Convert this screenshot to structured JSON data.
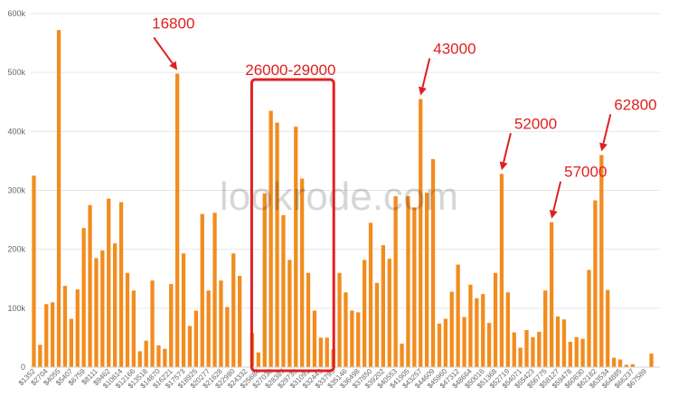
{
  "chart_data": {
    "type": "bar",
    "bar_color": "#f28c1e",
    "annotation_color": "#e02020",
    "grid": true,
    "ylim": [
      0,
      600000
    ],
    "y_ticks": [
      {
        "value": 0,
        "label": "0"
      },
      {
        "value": 100000,
        "label": "100k"
      },
      {
        "value": 200000,
        "label": "200k"
      },
      {
        "value": 300000,
        "label": "300k"
      },
      {
        "value": 400000,
        "label": "400k"
      },
      {
        "value": 500000,
        "label": "500k"
      },
      {
        "value": 600000,
        "label": "600k"
      }
    ],
    "x_tick_labels": [
      {
        "index": 0,
        "label": "$1352"
      },
      {
        "index": 2,
        "label": "$2704"
      },
      {
        "index": 4,
        "label": "$4055"
      },
      {
        "index": 6,
        "label": "$5407"
      },
      {
        "index": 8,
        "label": "$6759"
      },
      {
        "index": 10,
        "label": "$8111"
      },
      {
        "index": 12,
        "label": "$9462"
      },
      {
        "index": 14,
        "label": "$10814"
      },
      {
        "index": 16,
        "label": "$12166"
      },
      {
        "index": 18,
        "label": "$13518"
      },
      {
        "index": 20,
        "label": "$14870"
      },
      {
        "index": 22,
        "label": "$16221"
      },
      {
        "index": 24,
        "label": "$17573"
      },
      {
        "index": 26,
        "label": "$18925"
      },
      {
        "index": 28,
        "label": "$20277"
      },
      {
        "index": 30,
        "label": "$21628"
      },
      {
        "index": 32,
        "label": "$22980"
      },
      {
        "index": 34,
        "label": "$24332"
      },
      {
        "index": 36,
        "label": "$25684"
      },
      {
        "index": 38,
        "label": "$27036"
      },
      {
        "index": 40,
        "label": "$28387"
      },
      {
        "index": 42,
        "label": "$29739"
      },
      {
        "index": 44,
        "label": "$31091"
      },
      {
        "index": 46,
        "label": "$32443"
      },
      {
        "index": 48,
        "label": "$33795"
      },
      {
        "index": 50,
        "label": "$35146"
      },
      {
        "index": 52,
        "label": "$36498"
      },
      {
        "index": 54,
        "label": "$37850"
      },
      {
        "index": 56,
        "label": "$39202"
      },
      {
        "index": 58,
        "label": "$40553"
      },
      {
        "index": 60,
        "label": "$41905"
      },
      {
        "index": 62,
        "label": "$43257"
      },
      {
        "index": 64,
        "label": "$44609"
      },
      {
        "index": 66,
        "label": "$45960"
      },
      {
        "index": 68,
        "label": "$47312"
      },
      {
        "index": 70,
        "label": "$48664"
      },
      {
        "index": 72,
        "label": "$50016"
      },
      {
        "index": 74,
        "label": "$51368"
      },
      {
        "index": 76,
        "label": "$52719"
      },
      {
        "index": 78,
        "label": "$54071"
      },
      {
        "index": 80,
        "label": "$55423"
      },
      {
        "index": 82,
        "label": "$56775"
      },
      {
        "index": 84,
        "label": "$58127"
      },
      {
        "index": 86,
        "label": "$59478"
      },
      {
        "index": 88,
        "label": "$60830"
      },
      {
        "index": 90,
        "label": "$62182"
      },
      {
        "index": 92,
        "label": "$63534"
      },
      {
        "index": 94,
        "label": "$64885"
      },
      {
        "index": 96,
        "label": "$66237"
      },
      {
        "index": 98,
        "label": "$67589"
      }
    ],
    "values": [
      325000,
      38000,
      107000,
      110000,
      572000,
      138000,
      82000,
      132000,
      236000,
      275000,
      185000,
      198000,
      286000,
      210000,
      280000,
      160000,
      130000,
      27000,
      45000,
      147000,
      37000,
      31000,
      141000,
      498000,
      193000,
      70000,
      96000,
      260000,
      130000,
      262000,
      147000,
      102000,
      193000,
      155000,
      0,
      58000,
      25000,
      295000,
      435000,
      415000,
      258000,
      182000,
      408000,
      320000,
      160000,
      96000,
      50000,
      50000,
      30000,
      160000,
      127000,
      96000,
      93000,
      182000,
      245000,
      143000,
      207000,
      184000,
      290000,
      40000,
      290000,
      271000,
      455000,
      296000,
      353000,
      74000,
      82000,
      128000,
      174000,
      85000,
      140000,
      117000,
      124000,
      75000,
      160000,
      328000,
      127000,
      59000,
      33000,
      63000,
      51000,
      60000,
      130000,
      246000,
      86000,
      81000,
      43000,
      51000,
      48000,
      165000,
      283000,
      360000,
      131000,
      16000,
      13000,
      4000,
      5000,
      0,
      0,
      23000
    ],
    "highlight": {
      "start_index": 36,
      "end_index": 47
    },
    "annotations": [
      {
        "text": "16800",
        "index": 23
      },
      {
        "text": "26000-29000",
        "index": 41
      },
      {
        "text": "43000",
        "index": 62
      },
      {
        "text": "52000",
        "index": 75
      },
      {
        "text": "57000",
        "index": 83
      },
      {
        "text": "62800",
        "index": 91
      }
    ],
    "watermark": "lookrode.com"
  }
}
